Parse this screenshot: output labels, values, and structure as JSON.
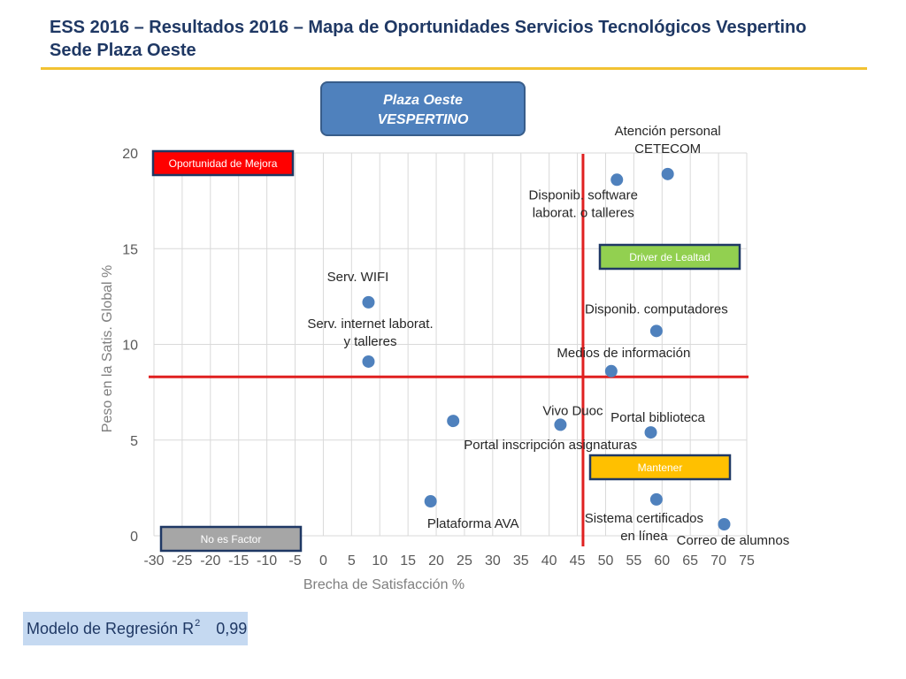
{
  "header": {
    "title_line1": "ESS 2016 – Resultados 2016 – Mapa de Oportunidades Servicios Tecnológicos Vespertino",
    "title_line2": "Sede Plaza Oeste"
  },
  "box": {
    "line1": "Plaza Oeste",
    "line2": "VESPERTINO"
  },
  "regression": {
    "label": "Modelo de Regresión R",
    "sup": "2",
    "value": "0,99"
  },
  "colors": {
    "title": "#1F3864",
    "rule": "#F2C232",
    "point": "#4F81BD",
    "refline": "#E02020",
    "oportunidad": "#FF0000",
    "driver": "#92D050",
    "mantener": "#FFC000",
    "noesfactor": "#A6A6A6"
  },
  "chart_data": {
    "type": "scatter",
    "xlabel": "Brecha de Satisfacción %",
    "ylabel": "Peso en la Satis. Global %",
    "xlim": [
      -30,
      75
    ],
    "ylim": [
      0,
      20
    ],
    "xticks": [
      "-30",
      "-25",
      "-20",
      "-15",
      "-10",
      "-5",
      "0",
      "5",
      "10",
      "15",
      "20",
      "25",
      "30",
      "35",
      "40",
      "45",
      "50",
      "55",
      "60",
      "65",
      "70",
      "75"
    ],
    "yticks": [
      "0",
      "5",
      "10",
      "15",
      "20"
    ],
    "grid": true,
    "reference_lines": {
      "x": 46,
      "y": 8.3
    },
    "quadrants": [
      {
        "label": "Oportunidad de Mejora",
        "position": "top-left"
      },
      {
        "label": "Driver de Lealtad",
        "position": "top-right"
      },
      {
        "label": "Mantener",
        "position": "bottom-right"
      },
      {
        "label": "No es Factor",
        "position": "bottom-left"
      }
    ],
    "points": [
      {
        "label": "Atención personal CETECOM",
        "x": 61,
        "y": 18.9
      },
      {
        "label": "Disponib. software laborat. o talleres",
        "x": 52,
        "y": 18.6
      },
      {
        "label": "Serv. WIFI",
        "x": 8,
        "y": 12.2
      },
      {
        "label": "Serv. internet laborat. y talleres",
        "x": 8,
        "y": 9.1
      },
      {
        "label": "Disponib. computadores",
        "x": 59,
        "y": 10.7
      },
      {
        "label": "Medios de información",
        "x": 51,
        "y": 8.6
      },
      {
        "label": "Portal inscripción asignaturas",
        "x": 23,
        "y": 6.0
      },
      {
        "label": "Vivo Duoc",
        "x": 42,
        "y": 5.8
      },
      {
        "label": "Portal biblioteca",
        "x": 58,
        "y": 5.4
      },
      {
        "label": "Plataforma AVA",
        "x": 19,
        "y": 1.8
      },
      {
        "label": "Sistema certificados en línea",
        "x": 59,
        "y": 1.9
      },
      {
        "label": "Correo de alumnos",
        "x": 71,
        "y": 0.6
      }
    ]
  }
}
